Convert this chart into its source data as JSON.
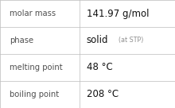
{
  "rows": [
    {
      "label": "molar mass",
      "value": "141.97 g/mol",
      "value2": null
    },
    {
      "label": "phase",
      "value": "solid",
      "value2": "(at STP)"
    },
    {
      "label": "melting point",
      "value": "48 °C",
      "value2": null
    },
    {
      "label": "boiling point",
      "value": "208 °C",
      "value2": null
    }
  ],
  "background_color": "#ffffff",
  "border_color": "#bbbbbb",
  "label_color": "#505050",
  "value_color": "#111111",
  "value2_color": "#909090",
  "label_fontsize": 7.2,
  "value_fontsize": 8.5,
  "value2_fontsize": 5.8,
  "col_split": 0.455
}
